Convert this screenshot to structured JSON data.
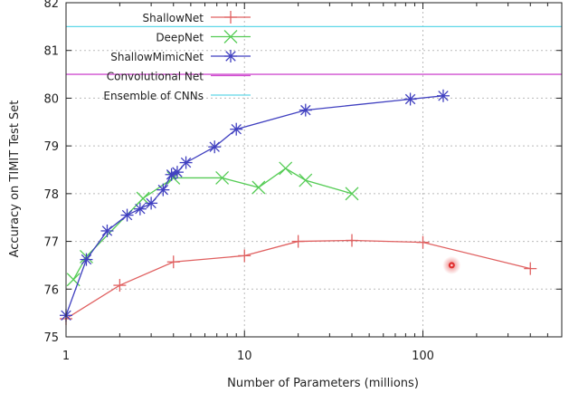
{
  "chart_data": {
    "type": "line",
    "title": "",
    "xlabel": "Number of Parameters (millions)",
    "ylabel": "Accuracy on TIMIT Test Set",
    "xscale": "log",
    "xlim": [
      1,
      600
    ],
    "ylim": [
      75,
      82
    ],
    "x_ticks": [
      1,
      10,
      100
    ],
    "x_tick_labels": [
      "1",
      "10",
      "100"
    ],
    "y_ticks": [
      75,
      76,
      77,
      78,
      79,
      80,
      81,
      82
    ],
    "y_tick_labels": [
      "75",
      "76",
      "77",
      "78",
      "79",
      "80",
      "81",
      "82"
    ],
    "grid": true,
    "legend_position": "top-left",
    "series": [
      {
        "name": "ShallowNet",
        "color": "#e06060",
        "marker": "plus",
        "x": [
          1.0,
          2.0,
          4.0,
          10.0,
          20.0,
          40.0,
          100.0,
          400.0
        ],
        "y": [
          75.38,
          76.08,
          76.57,
          76.7,
          77.0,
          77.02,
          76.98,
          76.43
        ]
      },
      {
        "name": "DeepNet",
        "color": "#55cc55",
        "marker": "x",
        "x": [
          1.1,
          1.3,
          2.7,
          4.0,
          7.5,
          12.0,
          17.0,
          22.0,
          40.0
        ],
        "y": [
          76.2,
          76.68,
          77.9,
          78.33,
          78.33,
          78.13,
          78.53,
          78.28,
          78.0
        ],
        "points_only": false
      },
      {
        "name": "ShallowMimicNet",
        "color": "#4040c0",
        "marker": "star",
        "x": [
          1.0,
          1.3,
          1.7,
          2.2,
          2.6,
          3.0,
          3.5,
          3.9,
          4.2,
          4.7,
          6.8,
          9.0,
          22.0,
          85.0,
          130.0
        ],
        "y": [
          75.45,
          76.62,
          77.22,
          77.55,
          77.68,
          77.8,
          78.08,
          78.4,
          78.45,
          78.65,
          78.98,
          79.35,
          79.75,
          79.98,
          80.05
        ]
      },
      {
        "name": "Convolutional Net",
        "color": "#d050d0",
        "type": "hline",
        "y": 80.5
      },
      {
        "name": "Ensemble of CNNs",
        "color": "#60d8e8",
        "type": "hline",
        "y": 81.5
      }
    ],
    "annotations": [
      {
        "type": "highlight-dot",
        "color": "#e03030",
        "x": 145,
        "y": 76.5
      }
    ]
  }
}
